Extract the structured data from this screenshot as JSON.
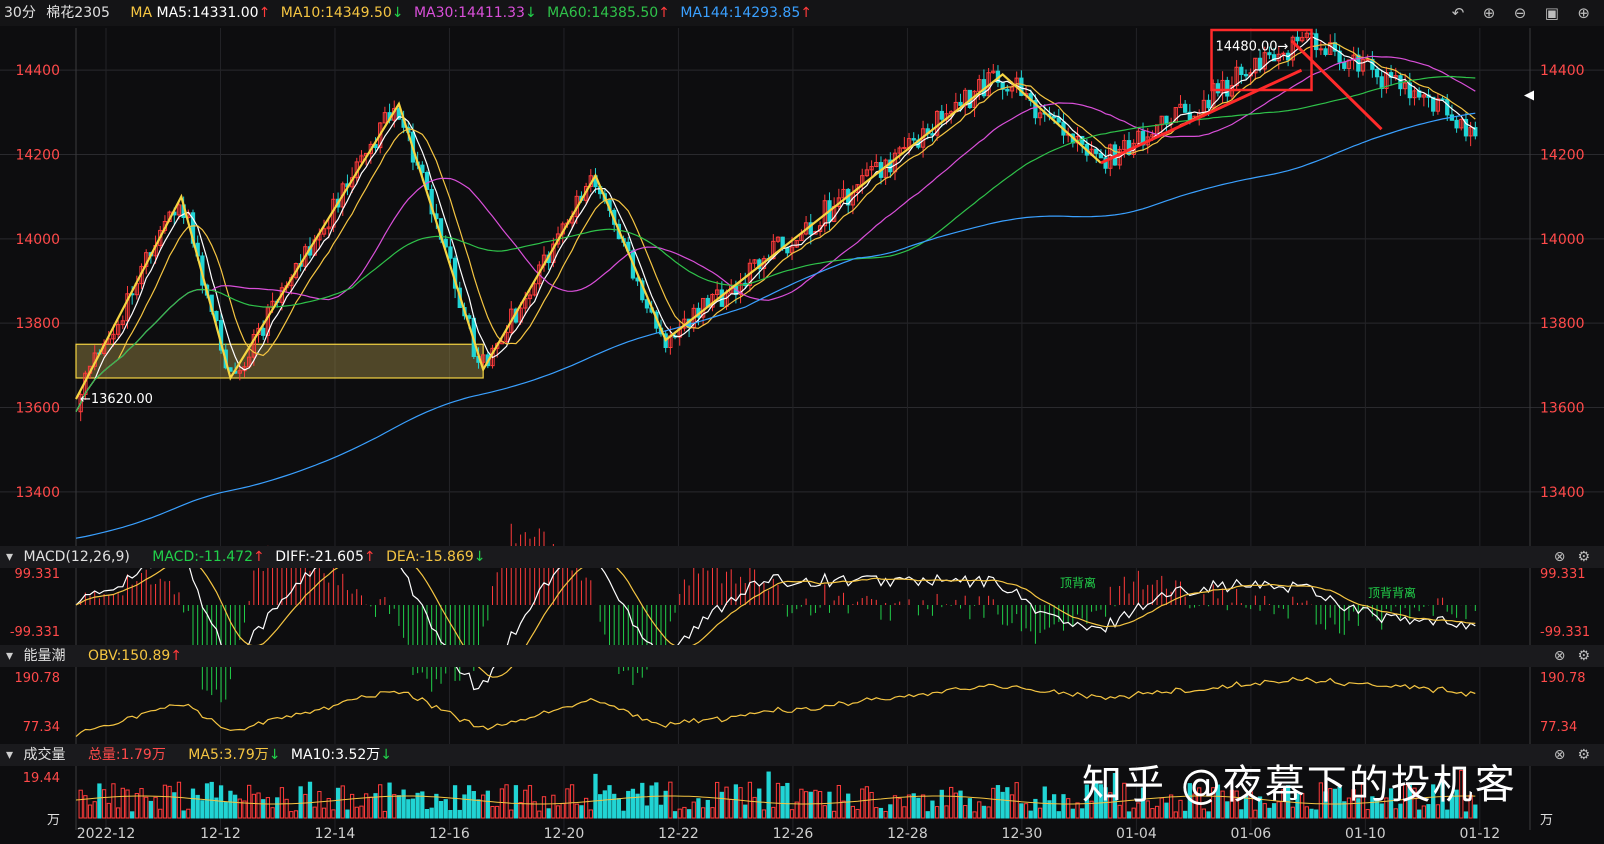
{
  "header": {
    "period": "30分",
    "symbol": "棉花2305",
    "ma_label": "MA",
    "ma": [
      {
        "text": "MA5:14331.00",
        "dir": "up",
        "color": "#ffffff"
      },
      {
        "text": "MA10:14349.50",
        "dir": "down",
        "color": "#f5c542"
      },
      {
        "text": "MA30:14411.33",
        "dir": "down",
        "color": "#d94fd9"
      },
      {
        "text": "MA60:14385.50",
        "dir": "up",
        "color": "#2fc24a"
      },
      {
        "text": "MA144:14293.85",
        "dir": "up",
        "color": "#3aa0ff"
      }
    ],
    "tools": [
      "undo-icon",
      "zoom-in-icon",
      "zoom-out-icon",
      "layout-icon",
      "add-icon"
    ]
  },
  "colors": {
    "up": "#ff3b3b",
    "down": "#21d4d4",
    "price_axis": "#ff4a4a",
    "zigzag": "#f5d442",
    "annot_red": "#ff2a2a"
  },
  "chart_data": [
    {
      "type": "candlestick",
      "title": "棉花2305 30分",
      "ylim": [
        13300,
        14500
      ],
      "yticks": [
        13400,
        13600,
        13800,
        14000,
        14200,
        14400
      ],
      "xticks": [
        "2022-12",
        "12-12",
        "12-14",
        "12-16",
        "12-20",
        "12-22",
        "12-26",
        "12-28",
        "12-30",
        "01-04",
        "01-06",
        "01-10",
        "01-12"
      ],
      "zigzag_points": [
        13620,
        14100,
        13670,
        14320,
        13690,
        14150,
        13760,
        14390,
        14180,
        14480,
        14260
      ],
      "annotations": [
        {
          "text": "←13620.00",
          "value": 13620
        },
        {
          "text": "14480.00→",
          "value": 14480
        }
      ],
      "support_zone": [
        13670,
        13750
      ],
      "last_price": 14340
    },
    {
      "type": "line",
      "name": "MACD(12,26,9)",
      "values_text": {
        "macd": "MACD:-11.472",
        "diff": "DIFF:-21.605",
        "dea": "DEA:-15.869"
      },
      "yticks": [
        "99.331",
        "-99.331"
      ],
      "labels": [
        "顶背离",
        "顶背背离"
      ]
    },
    {
      "type": "line",
      "name": "能量潮",
      "values_text": {
        "obv": "OBV:150.89"
      },
      "yticks": [
        "190.78",
        "77.34"
      ]
    },
    {
      "type": "bar",
      "name": "成交量",
      "values_text": {
        "total": "总量:1.79万",
        "ma5": "MA5:3.79万",
        "ma10": "MA10:3.52万"
      },
      "yticks": [
        "19.44",
        "万"
      ]
    }
  ],
  "panels": {
    "macd": {
      "name": "MACD(12,26,9)",
      "v1": "MACD:-11.472",
      "v2": "DIFF:-21.605",
      "v3": "DEA:-15.869"
    },
    "obv": {
      "name": "能量潮",
      "v1": "OBV:150.89"
    },
    "vol": {
      "name": "成交量",
      "v1": "总量:1.79万",
      "v2": "MA5:3.79万",
      "v3": "MA10:3.52万"
    }
  },
  "watermark": "知乎 @夜幕下的投机客"
}
